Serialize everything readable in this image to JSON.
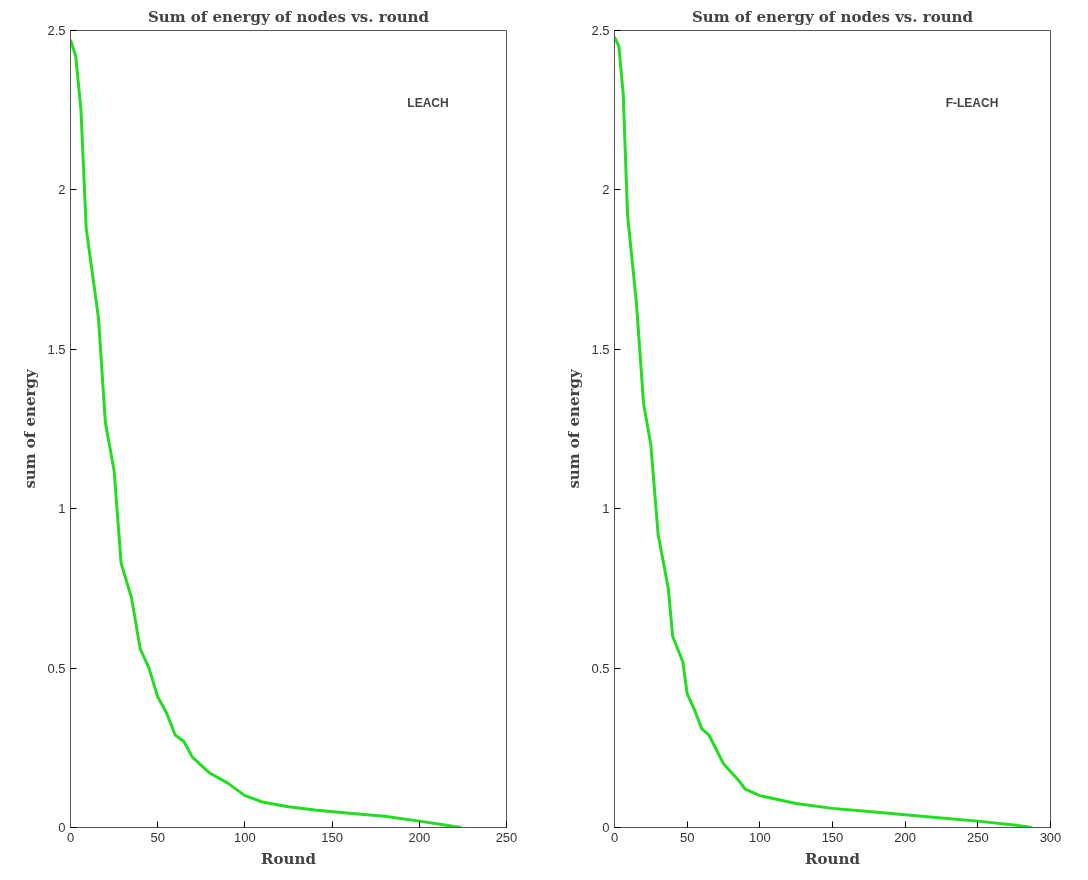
{
  "chart_data": [
    {
      "type": "line",
      "title": "Sum of energy of nodes vs. round",
      "xlabel": "Round",
      "ylabel": "sum of energy",
      "annotations": [
        "LEACH"
      ],
      "xlim": [
        0,
        250
      ],
      "ylim": [
        0,
        2.5
      ],
      "xticks": [
        0,
        50,
        100,
        150,
        200,
        250
      ],
      "yticks": [
        0,
        0.5,
        1,
        1.5,
        2,
        2.5
      ],
      "grid": false,
      "series": [
        {
          "color": "#22dd22",
          "x": [
            0,
            3,
            6,
            9,
            16,
            20,
            25,
            29,
            35,
            40,
            45,
            50,
            55,
            60,
            65,
            70,
            80,
            90,
            100,
            110,
            125,
            140,
            160,
            180,
            200,
            210,
            220,
            224
          ],
          "values": [
            2.47,
            2.42,
            2.25,
            1.88,
            1.6,
            1.27,
            1.12,
            0.83,
            0.72,
            0.56,
            0.5,
            0.41,
            0.36,
            0.29,
            0.27,
            0.22,
            0.17,
            0.14,
            0.1,
            0.08,
            0.065,
            0.055,
            0.045,
            0.035,
            0.02,
            0.012,
            0.003,
            0
          ]
        }
      ]
    },
    {
      "type": "line",
      "title": "Sum of energy of nodes vs. round",
      "xlabel": "Round",
      "ylabel": "sum of energy",
      "annotations": [
        "F-LEACH"
      ],
      "xlim": [
        0,
        300
      ],
      "ylim": [
        0,
        2.5
      ],
      "xticks": [
        0,
        50,
        100,
        150,
        200,
        250,
        300
      ],
      "yticks": [
        0,
        0.5,
        1,
        1.5,
        2,
        2.5
      ],
      "grid": false,
      "series": [
        {
          "color": "#22dd22",
          "x": [
            0,
            3,
            6,
            9,
            15,
            20,
            25,
            30,
            37,
            40,
            47,
            50,
            55,
            60,
            65,
            75,
            85,
            90,
            100,
            125,
            150,
            175,
            200,
            225,
            250,
            270,
            280,
            287
          ],
          "values": [
            2.48,
            2.45,
            2.3,
            1.92,
            1.65,
            1.33,
            1.2,
            0.92,
            0.75,
            0.6,
            0.52,
            0.42,
            0.37,
            0.31,
            0.29,
            0.2,
            0.15,
            0.12,
            0.1,
            0.075,
            0.06,
            0.05,
            0.04,
            0.03,
            0.02,
            0.01,
            0.005,
            0
          ]
        }
      ]
    }
  ]
}
